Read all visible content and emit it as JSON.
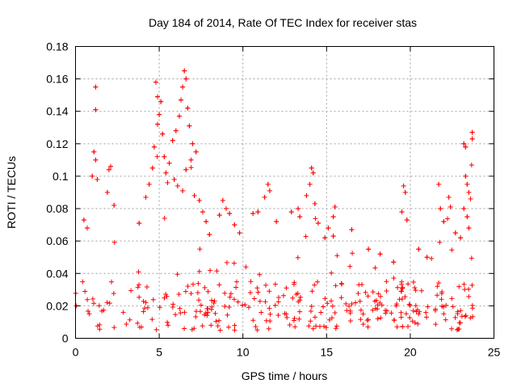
{
  "chart_data": {
    "type": "scatter",
    "title": "Day 184 of 2014, Rate Of TEC Index for receiver stas",
    "xlabel": "GPS time / hours",
    "ylabel": "ROTI / TECUs",
    "xlim": [
      0,
      25
    ],
    "ylim": [
      0,
      0.18
    ],
    "grid": true,
    "marker": "+",
    "colors": {
      "series": "#ff0000",
      "grid": "#a0a0a0",
      "axis": "#000000"
    },
    "x_ticks": [
      {
        "value": 0,
        "label": "0"
      },
      {
        "value": 5,
        "label": "5"
      },
      {
        "value": 10,
        "label": "10"
      },
      {
        "value": 15,
        "label": "15"
      },
      {
        "value": 20,
        "label": "20"
      },
      {
        "value": 25,
        "label": "25"
      }
    ],
    "y_ticks": [
      {
        "value": 0,
        "label": "0"
      },
      {
        "value": 0.02,
        "label": "0.02"
      },
      {
        "value": 0.04,
        "label": "0.04"
      },
      {
        "value": 0.06,
        "label": "0.06"
      },
      {
        "value": 0.08,
        "label": "0.08"
      },
      {
        "value": 0.1,
        "label": "0.1"
      },
      {
        "value": 0.12,
        "label": "0.12"
      },
      {
        "value": 0.14,
        "label": "0.14"
      },
      {
        "value": 0.16,
        "label": "0.16"
      },
      {
        "value": 0.18,
        "label": "0.18"
      }
    ],
    "series": [
      {
        "name": "ROTI",
        "x_range": [
          0.0,
          23.8
        ],
        "envelope_hours": [
          0,
          1,
          2,
          3,
          4,
          4.5,
          5,
          5.5,
          6,
          6.5,
          7,
          7.5,
          8,
          9,
          10,
          11,
          12,
          13,
          14,
          15,
          16,
          17,
          18,
          19,
          20,
          21,
          22,
          23,
          23.8
        ],
        "envelope_max": [
          0.05,
          0.08,
          0.07,
          0.06,
          0.06,
          0.09,
          0.14,
          0.12,
          0.13,
          0.15,
          0.12,
          0.09,
          0.085,
          0.06,
          0.06,
          0.07,
          0.07,
          0.07,
          0.09,
          0.06,
          0.06,
          0.05,
          0.05,
          0.05,
          0.07,
          0.05,
          0.07,
          0.09,
          0.12
        ],
        "baseline_median": 0.018,
        "points": [
          [
            1.2,
            0.155
          ],
          [
            1.2,
            0.141
          ],
          [
            1.1,
            0.115
          ],
          [
            1.2,
            0.11
          ],
          [
            1.0,
            0.1
          ],
          [
            1.3,
            0.098
          ],
          [
            2.1,
            0.106
          ],
          [
            2.0,
            0.104
          ],
          [
            1.9,
            0.09
          ],
          [
            2.3,
            0.082
          ],
          [
            0.5,
            0.073
          ],
          [
            0.7,
            0.068
          ],
          [
            4.8,
            0.158
          ],
          [
            4.9,
            0.149
          ],
          [
            5.1,
            0.146
          ],
          [
            5.0,
            0.138
          ],
          [
            4.9,
            0.132
          ],
          [
            5.2,
            0.126
          ],
          [
            4.7,
            0.118
          ],
          [
            5.3,
            0.112
          ],
          [
            4.6,
            0.105
          ],
          [
            4.4,
            0.095
          ],
          [
            4.2,
            0.087
          ],
          [
            3.8,
            0.071
          ],
          [
            6.5,
            0.165
          ],
          [
            6.6,
            0.16
          ],
          [
            6.4,
            0.155
          ],
          [
            6.3,
            0.147
          ],
          [
            6.7,
            0.142
          ],
          [
            6.2,
            0.137
          ],
          [
            6.8,
            0.131
          ],
          [
            6.0,
            0.128
          ],
          [
            5.8,
            0.122
          ],
          [
            7.0,
            0.12
          ],
          [
            7.2,
            0.115
          ],
          [
            6.9,
            0.11
          ],
          [
            5.6,
            0.108
          ],
          [
            5.4,
            0.102
          ],
          [
            5.9,
            0.098
          ],
          [
            6.1,
            0.094
          ],
          [
            6.4,
            0.091
          ],
          [
            7.1,
            0.088
          ],
          [
            7.4,
            0.085
          ],
          [
            7.6,
            0.078
          ],
          [
            7.8,
            0.072
          ],
          [
            8.0,
            0.064
          ],
          [
            5.5,
            0.096
          ],
          [
            6.6,
            0.104
          ],
          [
            8.8,
            0.085
          ],
          [
            9.0,
            0.08
          ],
          [
            9.2,
            0.077
          ],
          [
            9.5,
            0.07
          ],
          [
            8.6,
            0.076
          ],
          [
            9.8,
            0.065
          ],
          [
            11.5,
            0.095
          ],
          [
            11.6,
            0.091
          ],
          [
            11.3,
            0.087
          ],
          [
            10.9,
            0.078
          ],
          [
            10.6,
            0.077
          ],
          [
            12.0,
            0.072
          ],
          [
            12.9,
            0.078
          ],
          [
            13.4,
            0.075
          ],
          [
            13.3,
            0.08
          ],
          [
            14.1,
            0.105
          ],
          [
            14.2,
            0.102
          ],
          [
            14.0,
            0.095
          ],
          [
            13.8,
            0.088
          ],
          [
            14.3,
            0.083
          ],
          [
            14.5,
            0.071
          ],
          [
            14.9,
            0.062
          ],
          [
            15.4,
            0.063
          ],
          [
            15.1,
            0.068
          ],
          [
            15.5,
            0.081
          ],
          [
            15.4,
            0.075
          ],
          [
            16.5,
            0.067
          ],
          [
            17.5,
            0.055
          ],
          [
            18.2,
            0.052
          ],
          [
            19.0,
            0.047
          ],
          [
            19.6,
            0.094
          ],
          [
            19.7,
            0.09
          ],
          [
            19.5,
            0.078
          ],
          [
            19.8,
            0.073
          ],
          [
            20.5,
            0.055
          ],
          [
            21.0,
            0.05
          ],
          [
            21.7,
            0.095
          ],
          [
            21.8,
            0.08
          ],
          [
            22.3,
            0.087
          ],
          [
            22.4,
            0.081
          ],
          [
            22.0,
            0.072
          ],
          [
            22.7,
            0.065
          ],
          [
            23.2,
            0.12
          ],
          [
            23.3,
            0.118
          ],
          [
            23.7,
            0.127
          ],
          [
            23.7,
            0.123
          ],
          [
            23.3,
            0.1
          ],
          [
            23.4,
            0.095
          ],
          [
            23.5,
            0.09
          ],
          [
            23.6,
            0.086
          ],
          [
            23.2,
            0.08
          ],
          [
            23.4,
            0.075
          ],
          [
            23.5,
            0.068
          ],
          [
            23.0,
            0.062
          ]
        ]
      }
    ]
  }
}
